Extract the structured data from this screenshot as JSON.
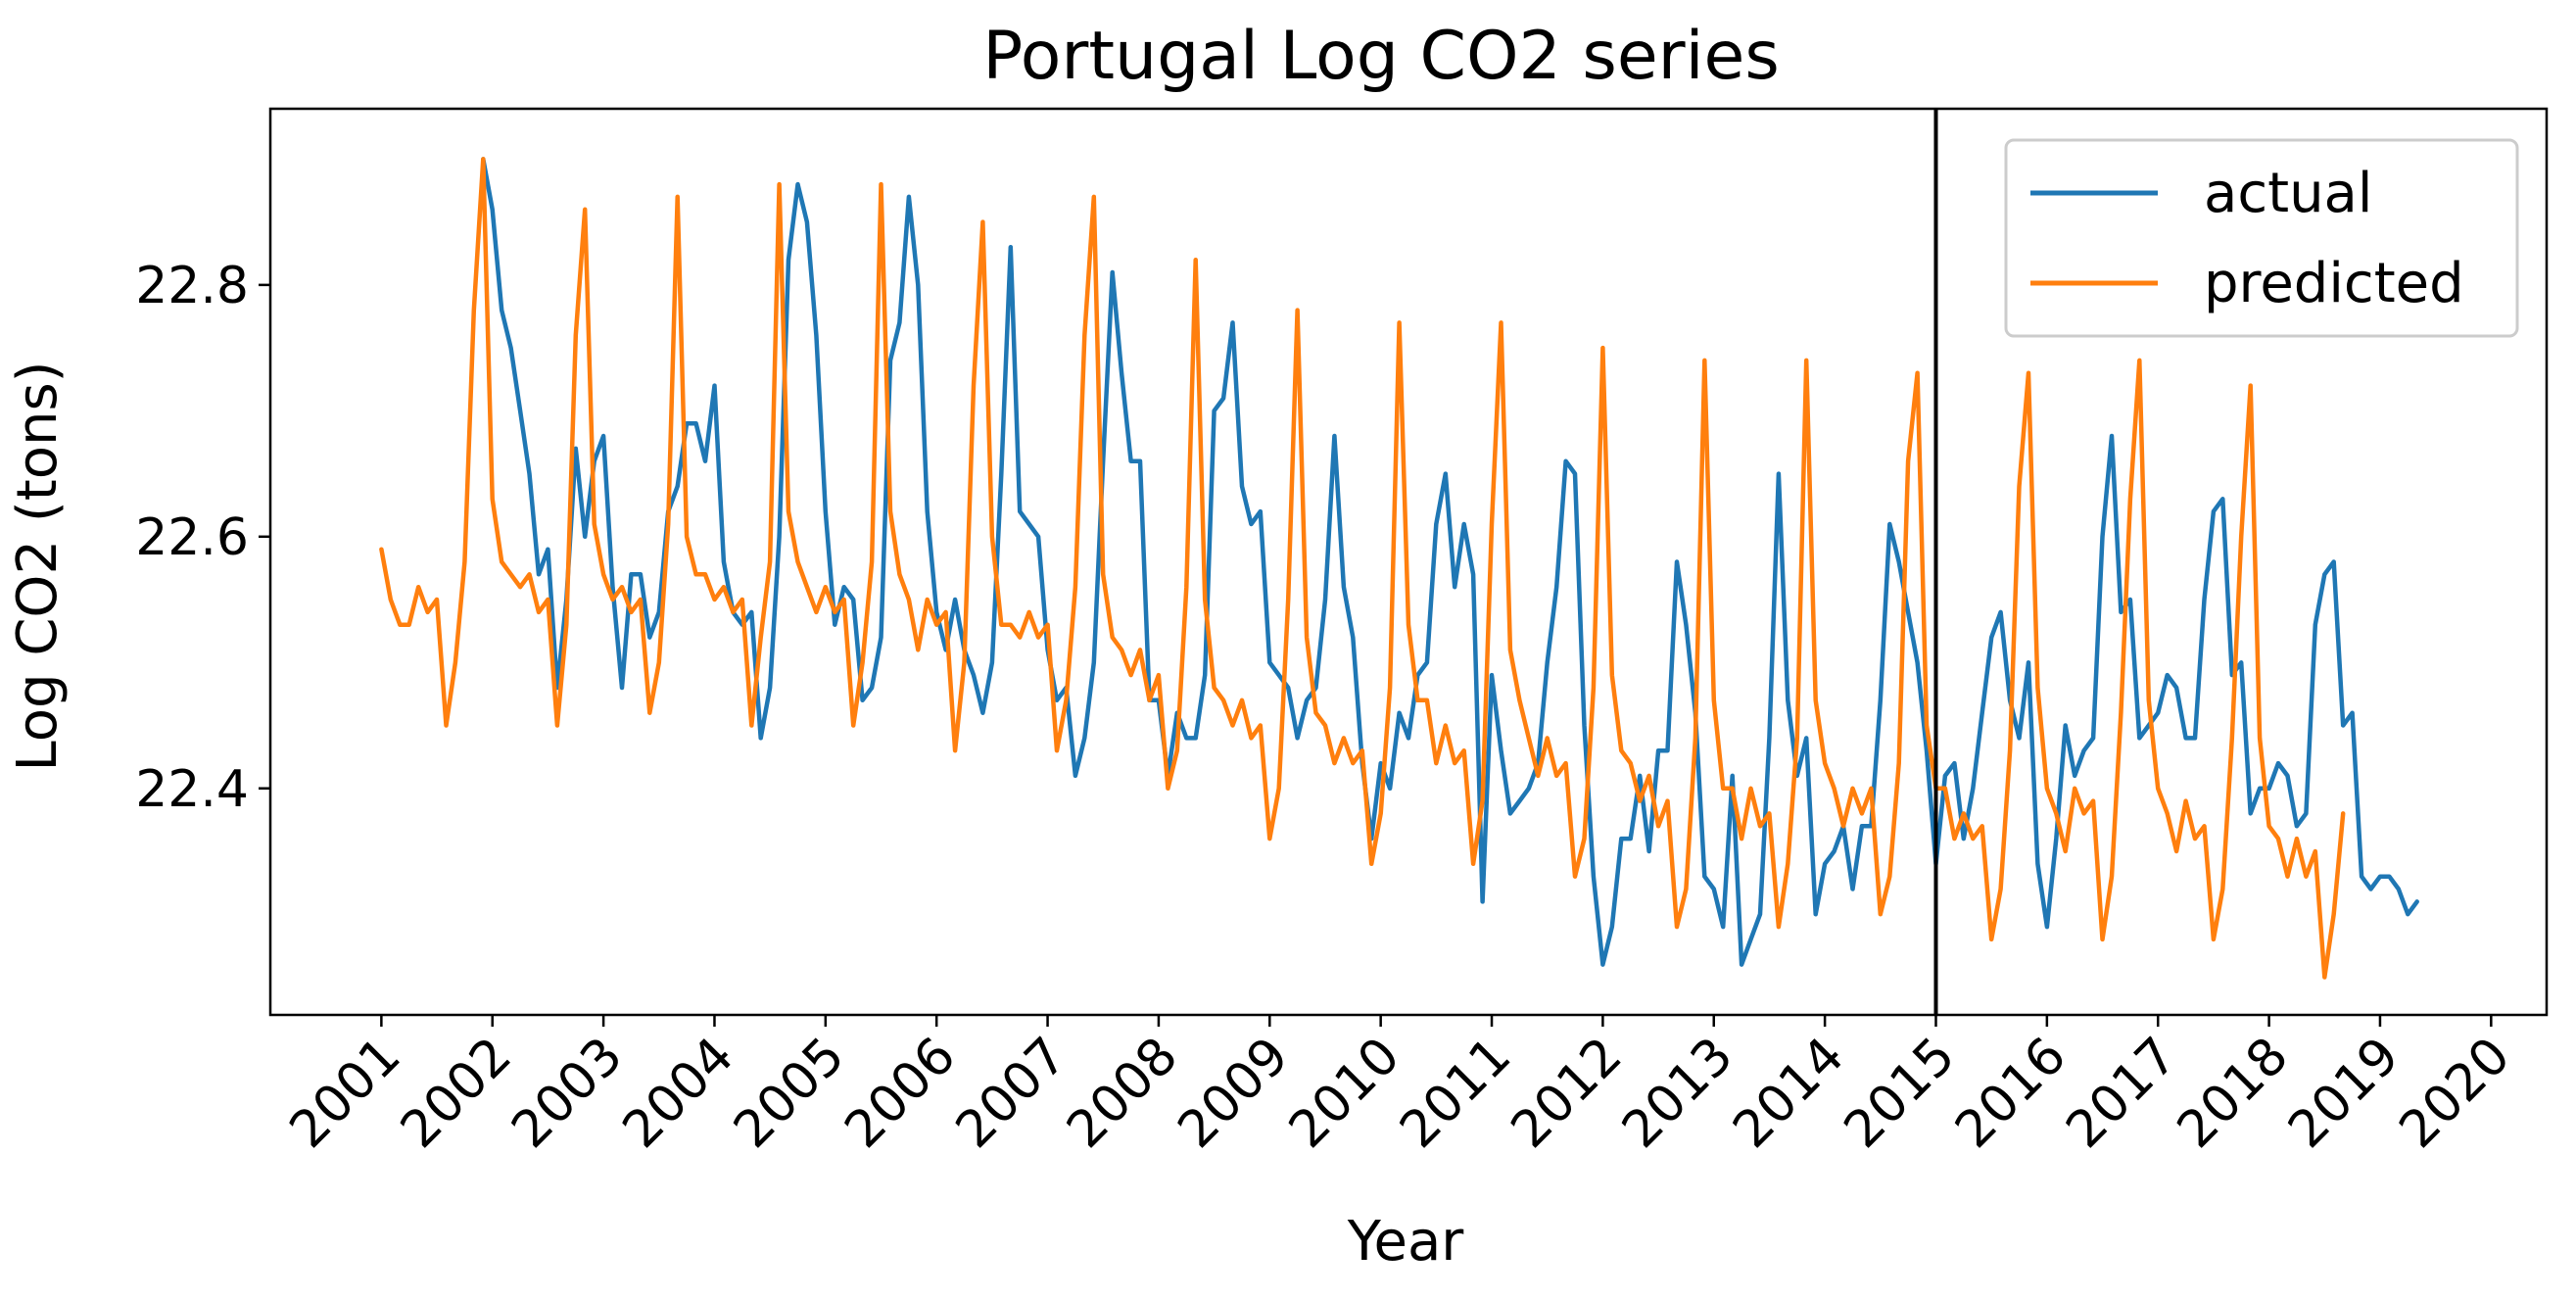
{
  "chart_data": {
    "type": "line",
    "title": "Portugal Log CO2 series",
    "xlabel": "Year",
    "ylabel": "Log CO2 (tons)",
    "x_ticks": [
      "2001",
      "2002",
      "2003",
      "2004",
      "2005",
      "2006",
      "2007",
      "2008",
      "2009",
      "2010",
      "2011",
      "2012",
      "2013",
      "2014",
      "2015",
      "2016",
      "2017",
      "2018",
      "2019",
      "2020"
    ],
    "y_ticks": [
      22.4,
      22.6,
      22.8
    ],
    "xlim": [
      "2000-01",
      "2020-07"
    ],
    "ylim": [
      22.22,
      22.94
    ],
    "x_start": "2001-01",
    "x_step": "month",
    "vertical_line": "2015-01",
    "grid": false,
    "legend_position": "top-right",
    "series": [
      {
        "name": "actual",
        "color": "#1f77b4",
        "start": "2001-12",
        "values": [
          22.9,
          22.86,
          22.78,
          22.75,
          22.7,
          22.65,
          22.57,
          22.59,
          22.48,
          22.55,
          22.67,
          22.6,
          22.66,
          22.68,
          22.56,
          22.48,
          22.57,
          22.57,
          22.52,
          22.54,
          22.62,
          22.64,
          22.69,
          22.69,
          22.66,
          22.72,
          22.58,
          22.54,
          22.53,
          22.54,
          22.44,
          22.48,
          22.6,
          22.82,
          22.88,
          22.85,
          22.76,
          22.62,
          22.53,
          22.56,
          22.55,
          22.47,
          22.48,
          22.52,
          22.74,
          22.77,
          22.87,
          22.8,
          22.62,
          22.54,
          22.51,
          22.55,
          22.51,
          22.49,
          22.46,
          22.5,
          22.65,
          22.83,
          22.62,
          22.61,
          22.6,
          22.51,
          22.47,
          22.48,
          22.41,
          22.44,
          22.5,
          22.66,
          22.81,
          22.73,
          22.66,
          22.66,
          22.47,
          22.47,
          22.41,
          22.46,
          22.44,
          22.44,
          22.49,
          22.7,
          22.71,
          22.77,
          22.64,
          22.61,
          22.62,
          22.5,
          22.49,
          22.48,
          22.44,
          22.47,
          22.48,
          22.55,
          22.68,
          22.56,
          22.52,
          22.42,
          22.36,
          22.42,
          22.4,
          22.46,
          22.44,
          22.49,
          22.5,
          22.61,
          22.65,
          22.56,
          22.61,
          22.57,
          22.31,
          22.49,
          22.43,
          22.38,
          22.39,
          22.4,
          22.42,
          22.5,
          22.56,
          22.66,
          22.65,
          22.45,
          22.33,
          22.26,
          22.29,
          22.36,
          22.36,
          22.41,
          22.35,
          22.43,
          22.43,
          22.58,
          22.53,
          22.46,
          22.33,
          22.32,
          22.29,
          22.41,
          22.26,
          22.28,
          22.3,
          22.44,
          22.65,
          22.47,
          22.41,
          22.44,
          22.3,
          22.34,
          22.35,
          22.37,
          22.32,
          22.37,
          22.37,
          22.47,
          22.61,
          22.58,
          22.54,
          22.5,
          22.43,
          22.34,
          22.41,
          22.42,
          22.36,
          22.4,
          22.46,
          22.52,
          22.54,
          22.47,
          22.44,
          22.5,
          22.34,
          22.29,
          22.36,
          22.45,
          22.41,
          22.43,
          22.44,
          22.6,
          22.68,
          22.54,
          22.55,
          22.44,
          22.45,
          22.46,
          22.49,
          22.48,
          22.44,
          22.44,
          22.55,
          22.62,
          22.63,
          22.49,
          22.5,
          22.38,
          22.4,
          22.4,
          22.42,
          22.41,
          22.37,
          22.38,
          22.53,
          22.57,
          22.58,
          22.45,
          22.46,
          22.33,
          22.32,
          22.33,
          22.33,
          22.32,
          22.3,
          22.31
        ]
      },
      {
        "name": "predicted",
        "color": "#ff7f0e",
        "start": "2001-01",
        "values": [
          22.59,
          22.55,
          22.53,
          22.53,
          22.56,
          22.54,
          22.55,
          22.45,
          22.5,
          22.58,
          22.78,
          22.9,
          22.63,
          22.58,
          22.57,
          22.56,
          22.57,
          22.54,
          22.55,
          22.45,
          22.53,
          22.76,
          22.86,
          22.61,
          22.57,
          22.55,
          22.56,
          22.54,
          22.55,
          22.46,
          22.5,
          22.61,
          22.87,
          22.6,
          22.57,
          22.57,
          22.55,
          22.56,
          22.54,
          22.55,
          22.45,
          22.52,
          22.58,
          22.88,
          22.62,
          22.58,
          22.56,
          22.54,
          22.56,
          22.54,
          22.55,
          22.45,
          22.5,
          22.58,
          22.88,
          22.62,
          22.57,
          22.55,
          22.51,
          22.55,
          22.53,
          22.54,
          22.43,
          22.5,
          22.72,
          22.85,
          22.6,
          22.53,
          22.53,
          22.52,
          22.54,
          22.52,
          22.53,
          22.43,
          22.47,
          22.56,
          22.76,
          22.87,
          22.57,
          22.52,
          22.51,
          22.49,
          22.51,
          22.47,
          22.49,
          22.4,
          22.43,
          22.56,
          22.82,
          22.55,
          22.48,
          22.47,
          22.45,
          22.47,
          22.44,
          22.45,
          22.36,
          22.4,
          22.55,
          22.78,
          22.52,
          22.46,
          22.45,
          22.42,
          22.44,
          22.42,
          22.43,
          22.34,
          22.38,
          22.48,
          22.77,
          22.53,
          22.47,
          22.47,
          22.42,
          22.45,
          22.42,
          22.43,
          22.34,
          22.39,
          22.61,
          22.77,
          22.51,
          22.47,
          22.44,
          22.41,
          22.44,
          22.41,
          22.42,
          22.33,
          22.36,
          22.48,
          22.75,
          22.49,
          22.43,
          22.42,
          22.39,
          22.41,
          22.37,
          22.39,
          22.29,
          22.32,
          22.44,
          22.74,
          22.47,
          22.4,
          22.4,
          22.36,
          22.4,
          22.37,
          22.38,
          22.29,
          22.34,
          22.44,
          22.74,
          22.47,
          22.42,
          22.4,
          22.37,
          22.4,
          22.38,
          22.4,
          22.3,
          22.33,
          22.42,
          22.66,
          22.73,
          22.45,
          22.4,
          22.4,
          22.36,
          22.38,
          22.36,
          22.37,
          22.28,
          22.32,
          22.43,
          22.64,
          22.73,
          22.48,
          22.4,
          22.38,
          22.35,
          22.4,
          22.38,
          22.39,
          22.28,
          22.33,
          22.46,
          22.63,
          22.74,
          22.47,
          22.4,
          22.38,
          22.35,
          22.39,
          22.36,
          22.37,
          22.28,
          22.32,
          22.44,
          22.6,
          22.72,
          22.44,
          22.37,
          22.36,
          22.33,
          22.36,
          22.33,
          22.35,
          22.25,
          22.3,
          22.38
        ]
      }
    ]
  }
}
